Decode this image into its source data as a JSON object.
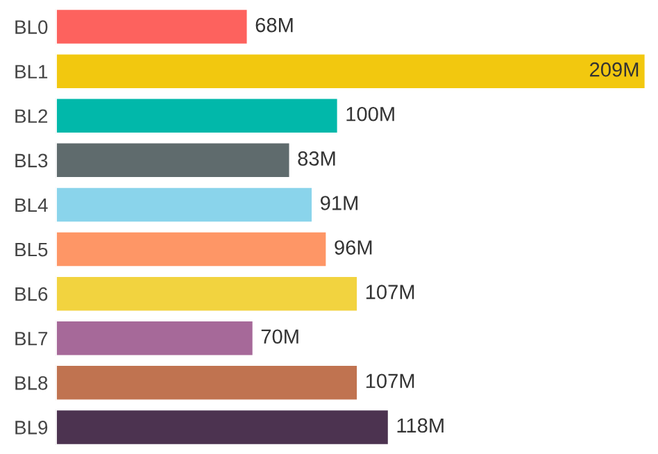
{
  "chart_data": {
    "type": "bar",
    "orientation": "horizontal",
    "categories": [
      "BL0",
      "BL1",
      "BL2",
      "BL3",
      "BL4",
      "BL5",
      "BL6",
      "BL7",
      "BL8",
      "BL9"
    ],
    "values": [
      68,
      209,
      100,
      83,
      91,
      96,
      107,
      70,
      107,
      118
    ],
    "value_labels": [
      "68M",
      "209M",
      "100M",
      "83M",
      "91M",
      "96M",
      "107M",
      "70M",
      "107M",
      "118M"
    ],
    "colors": [
      "#fd625e",
      "#f2c80f",
      "#01b8aa",
      "#5f6b6d",
      "#8ad4eb",
      "#fe9666",
      "#f2d33f",
      "#a66999",
      "#c07350",
      "#4c3350"
    ],
    "grid": false,
    "legend": false
  }
}
